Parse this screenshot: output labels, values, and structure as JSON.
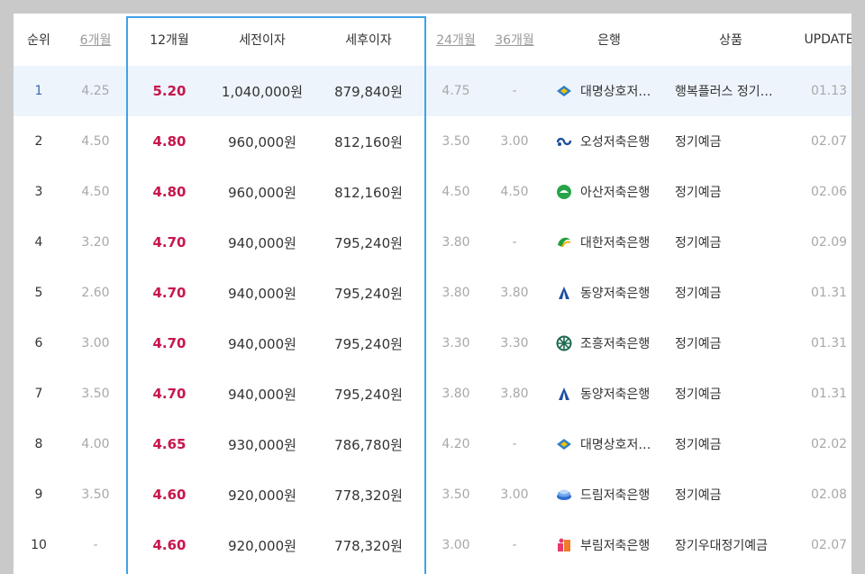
{
  "headers": {
    "rank": "순위",
    "m6": "6개월",
    "m12": "12개월",
    "pre_tax": "세전이자",
    "post_tax": "세후이자",
    "m24": "24개월",
    "m36": "36개월",
    "bank": "은행",
    "product": "상품",
    "update": "UPDATE"
  },
  "rows": [
    {
      "rank": "1",
      "m6": "4.25",
      "m12": "5.20",
      "pre_tax": "1,040,000원",
      "post_tax": "879,840원",
      "m24": "4.75",
      "m36": "-",
      "bank": "대명상호저축은행",
      "bank_icon": "daemyung-logo-icon",
      "product": "행복플러스 정기예금",
      "update": "01.13"
    },
    {
      "rank": "2",
      "m6": "4.50",
      "m12": "4.80",
      "pre_tax": "960,000원",
      "post_tax": "812,160원",
      "m24": "3.50",
      "m36": "3.00",
      "bank": "오성저축은행",
      "bank_icon": "osung-logo-icon",
      "product": "정기예금",
      "update": "02.07"
    },
    {
      "rank": "3",
      "m6": "4.50",
      "m12": "4.80",
      "pre_tax": "960,000원",
      "post_tax": "812,160원",
      "m24": "4.50",
      "m36": "4.50",
      "bank": "아산저축은행",
      "bank_icon": "asan-logo-icon",
      "product": "정기예금",
      "update": "02.06"
    },
    {
      "rank": "4",
      "m6": "3.20",
      "m12": "4.70",
      "pre_tax": "940,000원",
      "post_tax": "795,240원",
      "m24": "3.80",
      "m36": "-",
      "bank": "대한저축은행",
      "bank_icon": "daehan-logo-icon",
      "product": "정기예금",
      "update": "02.09"
    },
    {
      "rank": "5",
      "m6": "2.60",
      "m12": "4.70",
      "pre_tax": "940,000원",
      "post_tax": "795,240원",
      "m24": "3.80",
      "m36": "3.80",
      "bank": "동양저축은행",
      "bank_icon": "dongyang-logo-icon",
      "product": "정기예금",
      "update": "01.31"
    },
    {
      "rank": "6",
      "m6": "3.00",
      "m12": "4.70",
      "pre_tax": "940,000원",
      "post_tax": "795,240원",
      "m24": "3.30",
      "m36": "3.30",
      "bank": "조흥저축은행",
      "bank_icon": "joheung-logo-icon",
      "product": "정기예금",
      "update": "01.31"
    },
    {
      "rank": "7",
      "m6": "3.50",
      "m12": "4.70",
      "pre_tax": "940,000원",
      "post_tax": "795,240원",
      "m24": "3.80",
      "m36": "3.80",
      "bank": "동양저축은행",
      "bank_icon": "dongyang-logo-icon",
      "product": "정기예금",
      "update": "01.31"
    },
    {
      "rank": "8",
      "m6": "4.00",
      "m12": "4.65",
      "pre_tax": "930,000원",
      "post_tax": "786,780원",
      "m24": "4.20",
      "m36": "-",
      "bank": "대명상호저축은행",
      "bank_icon": "daemyung-logo-icon",
      "product": "정기예금",
      "update": "02.02"
    },
    {
      "rank": "9",
      "m6": "3.50",
      "m12": "4.60",
      "pre_tax": "920,000원",
      "post_tax": "778,320원",
      "m24": "3.50",
      "m36": "3.00",
      "bank": "드림저축은행",
      "bank_icon": "dream-logo-icon",
      "product": "정기예금",
      "update": "02.08"
    },
    {
      "rank": "10",
      "m6": "-",
      "m12": "4.60",
      "pre_tax": "920,000원",
      "post_tax": "778,320원",
      "m24": "3.00",
      "m36": "-",
      "bank": "부림저축은행",
      "bank_icon": "burim-logo-icon",
      "product": "장기우대정기예금",
      "update": "02.07"
    }
  ],
  "colors": {
    "rate_accent": "#c8164c",
    "frame": "#3fa3e6",
    "highlight_row": "#edf4fc"
  }
}
